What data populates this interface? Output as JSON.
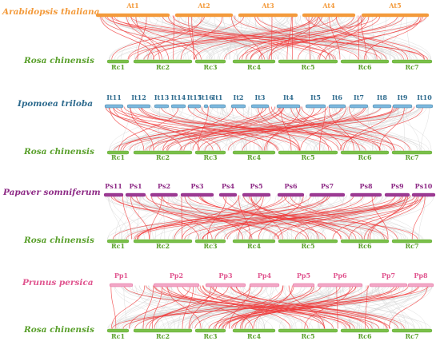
{
  "colors": {
    "arabidopsis": "#F39A3B",
    "ipomoea": "#2E6B8E",
    "ipomoea_bar": "#7BB8DE",
    "papaver": "#8E2B86",
    "papaver_bar": "#9C3A93",
    "prunus": "#E0558F",
    "prunus_bar": "#F2A7C6",
    "rosa": "#5AA02C",
    "rosa_bar": "#7AC04A",
    "link_highlight": "#F03A3A",
    "link_background": "#CFCFCF"
  },
  "panels": [
    {
      "top_species": "Arabidopsis thaliana",
      "top_key": "arabidopsis",
      "top_chromosomes": [
        "At1",
        "At2",
        "At3",
        "At4",
        "At5"
      ],
      "bottom_species": "Rosa chinensis",
      "bottom_chromosomes": [
        "Rc1",
        "Rc2",
        "Rc3",
        "Rc4",
        "Rc5",
        "Rc6",
        "Rc7"
      ]
    },
    {
      "top_species": "Ipomoea triloba",
      "top_key": "ipomoea",
      "top_chromosomes": [
        "It11",
        "It12",
        "It13",
        "It14",
        "It15",
        "It16",
        "It1",
        "It2",
        "It3",
        "It4",
        "It5",
        "It6",
        "It7",
        "It8",
        "It9",
        "It10"
      ],
      "bottom_species": "Rosa chinensis",
      "bottom_chromosomes": [
        "Rc1",
        "Rc2",
        "Rc3",
        "Rc4",
        "Rc5",
        "Rc6",
        "Rc7"
      ]
    },
    {
      "top_species": "Papaver somniferum",
      "top_key": "papaver",
      "top_chromosomes": [
        "Ps11",
        "Ps1",
        "Ps2",
        "Ps3",
        "Ps4",
        "Ps5",
        "Ps6",
        "Ps7",
        "Ps8",
        "Ps9",
        "Ps10"
      ],
      "bottom_species": "Rosa chinensis",
      "bottom_chromosomes": [
        "Rc1",
        "Rc2",
        "Rc3",
        "Rc4",
        "Rc5",
        "Rc6",
        "Rc7"
      ]
    },
    {
      "top_species": "Prunus persica",
      "top_key": "prunus",
      "top_chromosomes": [
        "Pp1",
        "Pp2",
        "Pp3",
        "Pp4",
        "Pp5",
        "Pp6",
        "Pp7",
        "Pp8"
      ],
      "bottom_species": "Rosa chinensis",
      "bottom_chromosomes": [
        "Rc1",
        "Rc2",
        "Rc3",
        "Rc4",
        "Rc5",
        "Rc6",
        "Rc7"
      ]
    }
  ]
}
